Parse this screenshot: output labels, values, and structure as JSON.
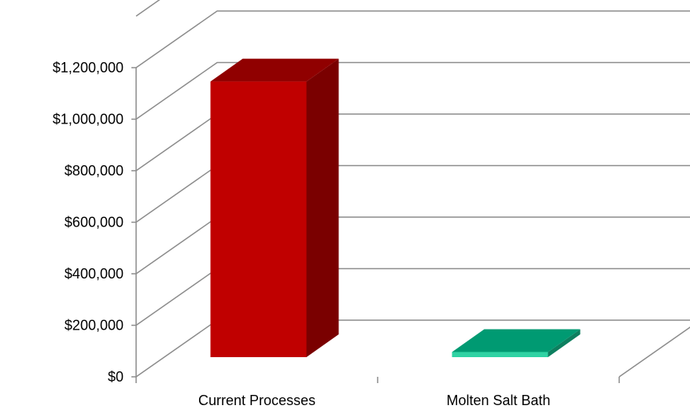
{
  "chart_data": {
    "type": "bar",
    "title": "",
    "xlabel": "",
    "ylabel": "",
    "categories": [
      "Current Processes",
      "Molten Salt Bath"
    ],
    "values": [
      1070000,
      20000
    ],
    "ylim": [
      0,
      1200000
    ],
    "yticks": [
      0,
      200000,
      400000,
      600000,
      800000,
      1000000,
      1200000
    ],
    "ytick_labels": [
      "$0",
      "$200,000",
      "$400,000",
      "$600,000",
      "$800,000",
      "$1,000,000",
      "$1,200,000"
    ],
    "grid": true,
    "legend": "none",
    "bar_colors": [
      {
        "front": "#c00000",
        "side": "#7a0000",
        "top": "#900000"
      },
      {
        "front": "#2fd3a3",
        "side": "#0d7f5f",
        "top": "#009a72"
      }
    ],
    "grid_color": "#8c8c8c"
  }
}
